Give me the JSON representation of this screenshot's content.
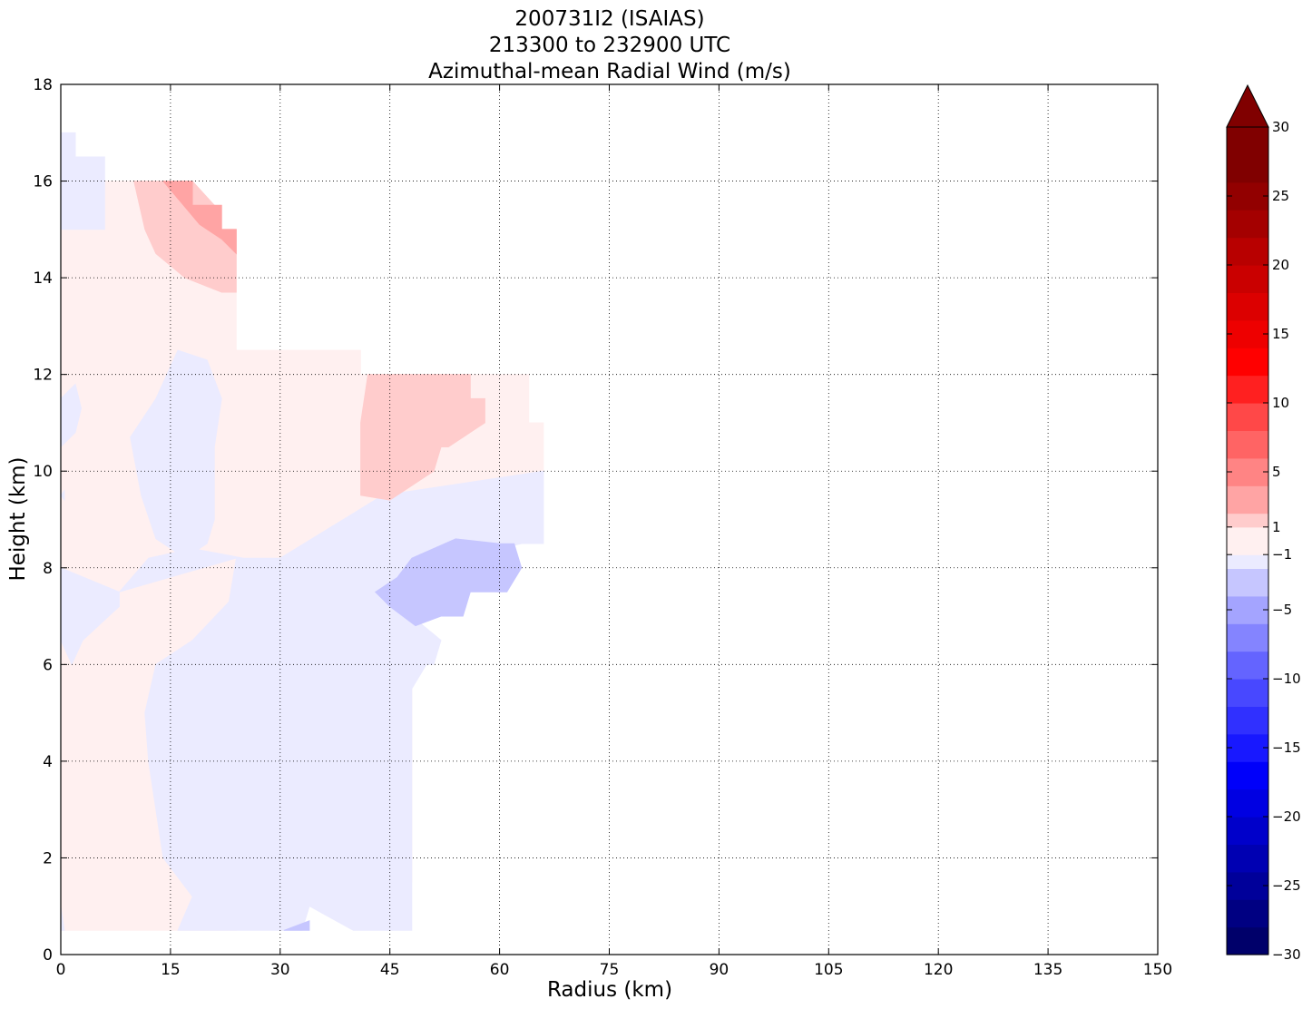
{
  "chart_data": {
    "type": "contour",
    "title": [
      "200731I2 (ISAIAS)",
      "213300 to 232900 UTC",
      "Azimuthal-mean Radial Wind (m/s)"
    ],
    "xlabel": "Radius (km)",
    "ylabel": "Height (km)",
    "xlim": [
      0,
      150
    ],
    "ylim": [
      0,
      18
    ],
    "xticks": [
      0,
      15,
      30,
      45,
      60,
      75,
      90,
      105,
      120,
      135,
      150
    ],
    "yticks": [
      0,
      2,
      4,
      6,
      8,
      10,
      12,
      14,
      16,
      18
    ],
    "grid": true,
    "colorbar": {
      "min": -30,
      "max": 30,
      "extend": "max",
      "tick_labels": [
        "−30",
        "−25",
        "−20",
        "−15",
        "−10",
        "−5",
        "−1",
        "1",
        "5",
        "10",
        "15",
        "20",
        "25",
        "30"
      ],
      "tick_values": [
        -30,
        -25,
        -20,
        -15,
        -10,
        -5,
        -1,
        1,
        5,
        10,
        15,
        20,
        25,
        30
      ],
      "levels": [
        -30,
        -28,
        -26,
        -24,
        -22,
        -20,
        -18,
        -16,
        -14,
        -12,
        -10,
        -8,
        -6,
        -4,
        -2,
        -1,
        1,
        2,
        4,
        6,
        8,
        10,
        12,
        14,
        16,
        18,
        20,
        22,
        24,
        26,
        28,
        30
      ],
      "colors": [
        "#00006a",
        "#000082",
        "#00009a",
        "#0000b2",
        "#0000ca",
        "#0000e2",
        "#0000fa",
        "#1818ff",
        "#3030ff",
        "#4848ff",
        "#6464ff",
        "#8484ff",
        "#a4a4ff",
        "#c6c6ff",
        "#ebebff",
        "#fff0f0",
        "#ffcccc",
        "#ffa4a4",
        "#ff8484",
        "#ff6464",
        "#ff4848",
        "#ff2020",
        "#ff0000",
        "#ee0000",
        "#dc0000",
        "#ca0000",
        "#b80000",
        "#a40000",
        "#920000",
        "#800000",
        "#800000"
      ]
    },
    "contour_regions": [
      {
        "value_range": "-1 to 1",
        "color": "#fff0f0",
        "polygons": [
          [
            [
              0,
              0.5
            ],
            [
              24,
              0.5
            ],
            [
              24,
              15
            ],
            [
              21,
              15
            ],
            [
              10,
              16
            ],
            [
              6,
              16
            ],
            [
              6,
              15
            ],
            [
              0,
              15
            ],
            [
              0,
              0.5
            ]
          ],
          [
            [
              24,
              12.5
            ],
            [
              41,
              12.5
            ],
            [
              41,
              12
            ],
            [
              64,
              12
            ],
            [
              64,
              11
            ],
            [
              66,
              11
            ],
            [
              66,
              10
            ],
            [
              44,
              9.5
            ],
            [
              30,
              8.2
            ],
            [
              24,
              8.2
            ],
            [
              24,
              12.5
            ]
          ],
          [
            [
              38,
              2.5
            ],
            [
              44,
              1.5
            ],
            [
              48,
              1.5
            ],
            [
              48,
              5.5
            ],
            [
              42,
              5.5
            ],
            [
              38,
              5
            ],
            [
              38,
              2.5
            ]
          ]
        ]
      },
      {
        "value_range": "-2 to -1",
        "color": "#ebebff",
        "polygons": [
          [
            [
              0,
              17
            ],
            [
              2,
              17
            ],
            [
              2,
              16.5
            ],
            [
              6,
              16.5
            ],
            [
              6,
              15.3
            ],
            [
              6,
              15
            ],
            [
              3,
              15
            ],
            [
              0,
              15
            ],
            [
              0,
              17
            ]
          ],
          [
            [
              13,
              11.5
            ],
            [
              16,
              12.5
            ],
            [
              20,
              12.3
            ],
            [
              22,
              11.5
            ],
            [
              21,
              10.5
            ],
            [
              21,
              9
            ],
            [
              20,
              8.5
            ],
            [
              17,
              8.2
            ],
            [
              13,
              8.6
            ],
            [
              11,
              9.5
            ],
            [
              9.5,
              10.7
            ],
            [
              13,
              11.5
            ]
          ],
          [
            [
              0,
              9.5
            ],
            [
              0.5,
              9.4
            ],
            [
              0.5,
              9.6
            ],
            [
              0,
              9.5
            ]
          ],
          [
            [
              0,
              11.5
            ],
            [
              2,
              11.8
            ],
            [
              2.8,
              11.3
            ],
            [
              2,
              10.8
            ],
            [
              0,
              10.5
            ],
            [
              0,
              11.5
            ]
          ],
          [
            [
              8,
              7.5
            ],
            [
              12,
              8.2
            ],
            [
              18,
              8.4
            ],
            [
              25,
              8.2
            ],
            [
              30,
              8.2
            ],
            [
              44,
              9.5
            ],
            [
              66,
              10
            ],
            [
              66,
              8.5
            ],
            [
              63,
              8.5
            ],
            [
              55,
              8.2
            ],
            [
              48,
              7
            ],
            [
              52,
              6.5
            ],
            [
              51,
              6
            ],
            [
              50,
              6
            ],
            [
              48,
              5.5
            ],
            [
              48,
              0.5
            ],
            [
              40,
              0.5
            ],
            [
              34,
              1
            ],
            [
              33,
              0.5
            ],
            [
              16,
              0.5
            ],
            [
              18,
              1.2
            ],
            [
              14,
              2
            ],
            [
              12,
              4
            ],
            [
              11.5,
              5
            ],
            [
              13,
              6
            ],
            [
              18,
              6.5
            ],
            [
              23,
              7.3
            ],
            [
              24,
              8.2
            ],
            [
              8,
              7.5
            ]
          ],
          [
            [
              0,
              8
            ],
            [
              8,
              7.5
            ],
            [
              8,
              7.2
            ],
            [
              3,
              6.5
            ],
            [
              1.5,
              6
            ],
            [
              0,
              6.5
            ],
            [
              0,
              8
            ]
          ],
          [
            [
              0,
              1
            ],
            [
              0.5,
              0.5
            ],
            [
              0,
              0.5
            ],
            [
              0,
              1
            ]
          ]
        ]
      },
      {
        "value_range": "-4 to -2",
        "color": "#c6c6ff",
        "polygons": [
          [
            [
              43,
              7.5
            ],
            [
              46,
              7.8
            ],
            [
              48,
              8.2
            ],
            [
              54,
              8.6
            ],
            [
              60,
              8.5
            ],
            [
              62,
              8.5
            ],
            [
              63,
              8
            ],
            [
              61,
              7.5
            ],
            [
              56,
              7.5
            ],
            [
              55,
              7
            ],
            [
              52,
              7
            ],
            [
              48.5,
              6.8
            ],
            [
              45,
              7.2
            ],
            [
              43,
              7.5
            ]
          ],
          [
            [
              30.5,
              0.5
            ],
            [
              34,
              0.7
            ],
            [
              34,
              0.5
            ],
            [
              30.5,
              0.5
            ]
          ]
        ]
      },
      {
        "value_range": "1 to 2",
        "color": "#ffcccc",
        "polygons": [
          [
            [
              10,
              16
            ],
            [
              11.5,
              15
            ],
            [
              13,
              14.5
            ],
            [
              17,
              14
            ],
            [
              22,
              13.7
            ],
            [
              24,
              13.7
            ],
            [
              24,
              15
            ],
            [
              21,
              15
            ],
            [
              21,
              15.5
            ],
            [
              18,
              16
            ],
            [
              10,
              16
            ]
          ],
          [
            [
              41,
              11
            ],
            [
              42,
              12
            ],
            [
              56,
              12
            ],
            [
              56,
              11.5
            ],
            [
              58,
              11.5
            ],
            [
              58,
              11
            ],
            [
              56,
              10.8
            ],
            [
              53,
              10.5
            ],
            [
              52,
              10.5
            ],
            [
              51,
              10
            ],
            [
              45,
              9.4
            ],
            [
              41,
              9.5
            ],
            [
              41,
              11
            ]
          ]
        ]
      },
      {
        "value_range": "2 to 4",
        "color": "#ffa4a4",
        "polygons": [
          [
            [
              14,
              16
            ],
            [
              18,
              16
            ],
            [
              18,
              15.5
            ],
            [
              22,
              15.5
            ],
            [
              22,
              15
            ],
            [
              24,
              15
            ],
            [
              24,
              14.5
            ],
            [
              22,
              14.8
            ],
            [
              19,
              15.1
            ],
            [
              14,
              16
            ]
          ]
        ]
      }
    ]
  }
}
